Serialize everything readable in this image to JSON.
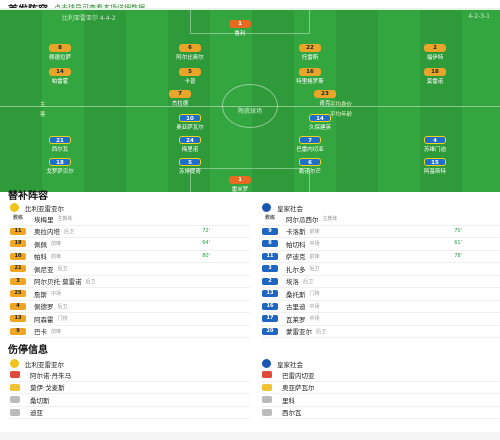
{
  "lineup_header": {
    "title": "首发阵容",
    "subtitle": "点击球员可查看本场详细数据"
  },
  "pitch": {
    "home_team": "比利亚雷亚尔 4-4-2",
    "home_formation": "4-4-2",
    "away_team": "皇家社会",
    "away_formation": "4-2-3-1",
    "stadium_label": "陶瓷球场",
    "left_marker_top": "主",
    "left_marker_bottom": "客",
    "right_marker_top": "平均身价",
    "right_marker_bottom": "平均年龄",
    "home_players": [
      {
        "num": "1",
        "name": "鲁利"
      },
      {
        "num": "8",
        "name": "佩德拉萨"
      },
      {
        "num": "6",
        "name": "阿尔比奥尔"
      },
      {
        "num": "22",
        "name": "托雷斯"
      },
      {
        "num": "2",
        "name": "福伊特"
      },
      {
        "num": "14",
        "name": "帕雷霍"
      },
      {
        "num": "5",
        "name": "卡普"
      },
      {
        "num": "16",
        "name": "特里格罗斯"
      },
      {
        "num": "18",
        "name": "莫雷诺"
      },
      {
        "num": "7",
        "name": "杰拉德"
      },
      {
        "num": "23",
        "name": "奇克"
      }
    ],
    "away_players": [
      {
        "num": "10",
        "name": "奥亚萨瓦尔"
      },
      {
        "num": "14",
        "name": "久保建英"
      },
      {
        "num": "21",
        "name": "西尔瓦"
      },
      {
        "num": "24",
        "name": "梅里诺"
      },
      {
        "num": "7",
        "name": "巴雷内切亚"
      },
      {
        "num": "4",
        "name": "苏维门迪"
      },
      {
        "num": "18",
        "name": "戈罗萨贝尔"
      },
      {
        "num": "5",
        "name": "苏博提奇"
      },
      {
        "num": "6",
        "name": "勒诺尔芒"
      },
      {
        "num": "15",
        "name": "阿基斯特"
      },
      {
        "num": "1",
        "name": "雷米罗"
      }
    ]
  },
  "subs_header": {
    "title": "替补阵容"
  },
  "subs": {
    "home_team": "比利亚雷亚尔",
    "away_team": "皇家社会",
    "home": [
      {
        "num": "教练",
        "name": "埃梅里",
        "pos": "主教练",
        "min": ""
      },
      {
        "num": "11",
        "name": "奥拉内塔",
        "pos": "后卫",
        "min": "72'"
      },
      {
        "num": "19",
        "name": "佩佩",
        "pos": "前锋",
        "min": "64'"
      },
      {
        "num": "10",
        "name": "帕科",
        "pos": "前锋",
        "min": "80'"
      },
      {
        "num": "21",
        "name": "佩尼亚",
        "pos": "后卫",
        "min": ""
      },
      {
        "num": "3",
        "name": "阿尔贝托·莫雷诺",
        "pos": "后卫",
        "min": ""
      },
      {
        "num": "25",
        "name": "詹斯",
        "pos": "中场",
        "min": ""
      },
      {
        "num": "4",
        "name": "佩德罗",
        "pos": "后卫",
        "min": ""
      },
      {
        "num": "13",
        "name": "阿森霍",
        "pos": "门将",
        "min": ""
      },
      {
        "num": "9",
        "name": "巴卡",
        "pos": "前锋",
        "min": ""
      }
    ],
    "away": [
      {
        "num": "教练",
        "name": "阿尔瓜西尔",
        "pos": "主教练",
        "min": ""
      },
      {
        "num": "9",
        "name": "卡洛斯",
        "pos": "前锋",
        "min": "70'"
      },
      {
        "num": "8",
        "name": "帕切科",
        "pos": "中场",
        "min": "61'"
      },
      {
        "num": "11",
        "name": "萨迪克",
        "pos": "前锋",
        "min": "78'"
      },
      {
        "num": "3",
        "name": "扎尔多",
        "pos": "后卫",
        "min": ""
      },
      {
        "num": "2",
        "name": "埃洛",
        "pos": "后卫",
        "min": ""
      },
      {
        "num": "13",
        "name": "桑托斯",
        "pos": "门将",
        "min": ""
      },
      {
        "num": "16",
        "name": "古里迪",
        "pos": "中场",
        "min": ""
      },
      {
        "num": "17",
        "name": "瓦莱罗",
        "pos": "中场",
        "min": ""
      },
      {
        "num": "20",
        "name": "蒙雷亚尔",
        "pos": "后卫",
        "min": ""
      }
    ]
  },
  "injury_header": {
    "title": "伤停信息"
  },
  "injuries": {
    "home_team": "比利亚雷亚尔",
    "away_team": "皇家社会",
    "home": [
      {
        "name": "阿尔诺·丹朱马",
        "status": "red"
      },
      {
        "name": "莫伊·戈麦斯",
        "status": "yellow"
      },
      {
        "name": "桑切斯",
        "status": "grey"
      },
      {
        "name": "迪亚",
        "status": "grey"
      }
    ],
    "away": [
      {
        "name": "巴雷内切亚",
        "status": "red"
      },
      {
        "name": "奥亚萨瓦尔",
        "status": "yellow"
      },
      {
        "name": "里科",
        "status": "grey"
      },
      {
        "name": "西尔瓦",
        "status": "grey"
      }
    ]
  },
  "colors": {
    "home_crest": "#f2c21c",
    "away_crest": "#1a56b0",
    "pitch": "#2f9a3a"
  }
}
